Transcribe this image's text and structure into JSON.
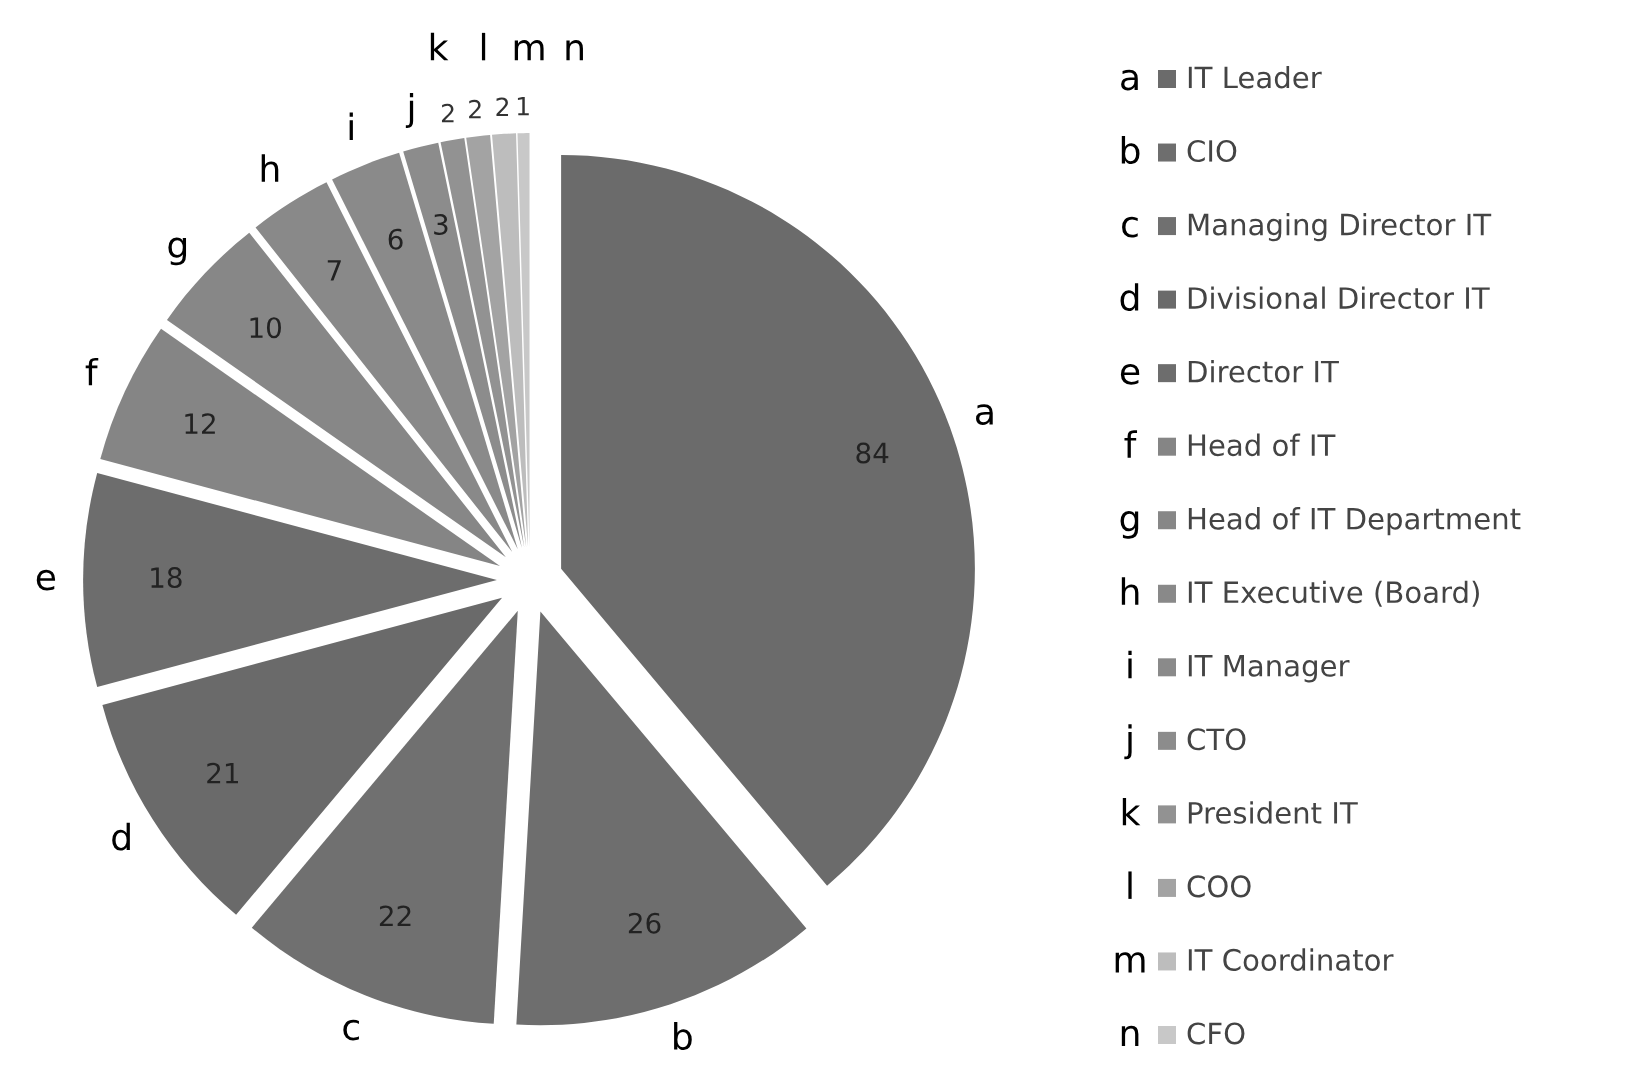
{
  "chart_data": {
    "type": "pie",
    "categories": [
      "IT Leader",
      "CIO",
      "Managing Director IT",
      "Divisional Director IT",
      "Director IT",
      "Head of IT",
      "Head of IT Department",
      "IT Executive (Board)",
      "IT Manager",
      "CTO",
      "President IT",
      "COO",
      "IT Coordinator",
      "CFO"
    ],
    "values": [
      84,
      26,
      22,
      21,
      18,
      12,
      10,
      7,
      6,
      3,
      2,
      2,
      2,
      1
    ],
    "colors": [
      "#6b6b6b",
      "#6e6e6e",
      "#707070",
      "#6a6a6a",
      "#6d6d6d",
      "#858585",
      "#878787",
      "#898989",
      "#8a8a8a",
      "#8c8c8c",
      "#929292",
      "#a3a3a3",
      "#bdbdbd",
      "#c8c8c8"
    ],
    "annotations": [
      "a",
      "b",
      "c",
      "d",
      "e",
      "f",
      "g",
      "h",
      "i",
      "j",
      "k",
      "l",
      "m",
      "n"
    ],
    "data_labels": true,
    "legend": "right"
  }
}
